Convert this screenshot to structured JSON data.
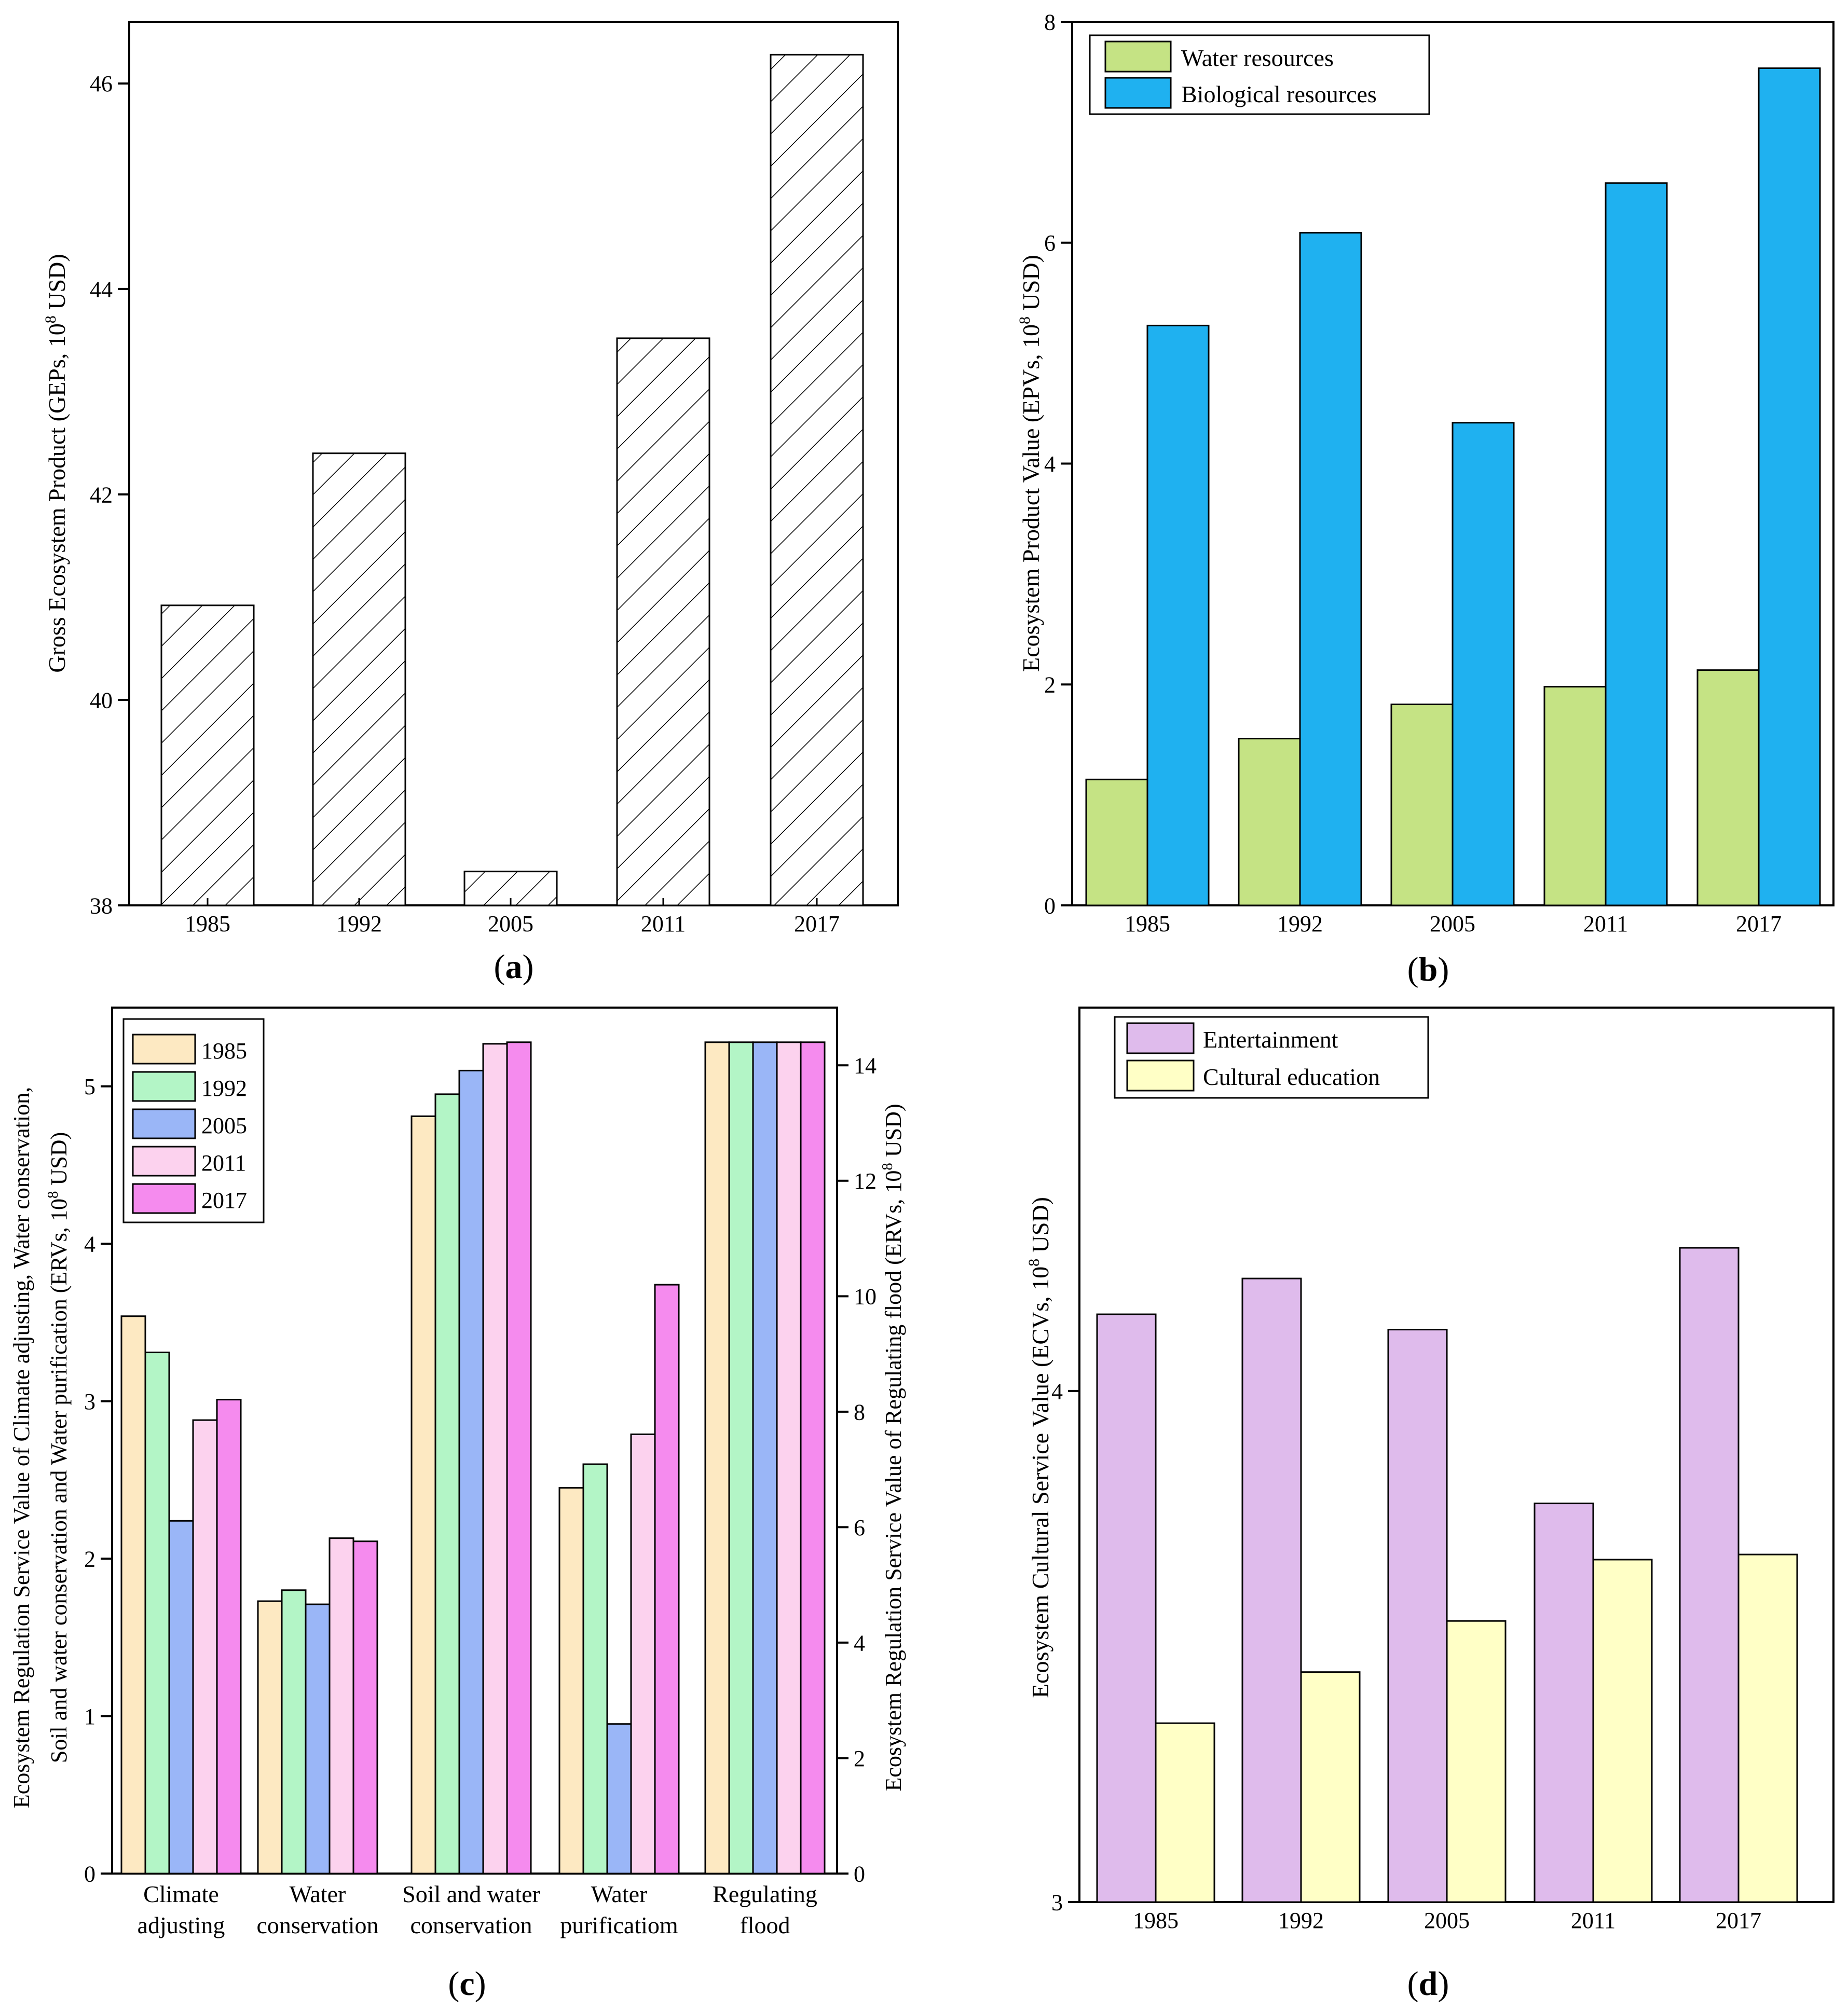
{
  "panels": {
    "a": {
      "caption_letter": "a"
    },
    "b": {
      "caption_letter": "b"
    },
    "c": {
      "caption_letter": "c"
    },
    "d": {
      "caption_letter": "d"
    }
  },
  "colors": {
    "water_resources": "#c5e384",
    "biological_resources": "#1fb1f0",
    "y1985": "#fde9c2",
    "y1992": "#b3f5c6",
    "y2005": "#9ab6f7",
    "y2011": "#fcd2ee",
    "y2017": "#f58bee",
    "entertainment": "#dfbbec",
    "cultural_education": "#ffffc6",
    "hatch": "#000000"
  },
  "chart_data": [
    {
      "id": "a",
      "type": "bar",
      "categories": [
        "1985",
        "1992",
        "2005",
        "2011",
        "2017"
      ],
      "values": [
        40.92,
        42.4,
        38.33,
        43.52,
        46.28
      ],
      "ylabel": "Gross Ecosystem Product (GEPs, 10",
      "ylabel_sup": "8",
      "ylabel_suffix": " USD)",
      "ylim": [
        38,
        46.6
      ],
      "yticks": [
        38,
        40,
        42,
        44,
        46
      ],
      "ytick_labels": [
        "38",
        "40",
        "42",
        "44",
        "46"
      ],
      "fill": "diagonal-hatch",
      "grid": false
    },
    {
      "id": "b",
      "type": "bar",
      "categories": [
        "1985",
        "1992",
        "2005",
        "2011",
        "2017"
      ],
      "series": [
        {
          "name": "Water resources",
          "values": [
            1.14,
            1.51,
            1.82,
            1.98,
            2.13
          ]
        },
        {
          "name": "Biological resources",
          "values": [
            5.25,
            6.09,
            4.37,
            6.54,
            7.58
          ]
        }
      ],
      "ylabel": "Ecosystem Product Value (EPVs, 10",
      "ylabel_sup": "8",
      "ylabel_suffix": " USD)",
      "ylim": [
        0,
        8
      ],
      "yticks": [
        0,
        2,
        4,
        6,
        8
      ],
      "ytick_labels": [
        "0",
        "2",
        "4",
        "6",
        "8"
      ],
      "legend": "top-left",
      "grid": false
    },
    {
      "id": "c",
      "type": "bar",
      "categories": [
        "Climate adjusting",
        "Water conservation",
        "Soil and water conservation",
        "Water purificatiom",
        "Regulating flood"
      ],
      "category_lines": [
        [
          "Climate",
          "adjusting"
        ],
        [
          "Water",
          "conservation"
        ],
        [
          "Soil and water",
          "conservation"
        ],
        [
          "Water",
          "purificatiom"
        ],
        [
          "Regulating",
          "flood"
        ]
      ],
      "series": [
        {
          "name": "1985",
          "values": [
            3.54,
            1.73,
            4.81,
            2.45,
            14.4
          ]
        },
        {
          "name": "1992",
          "values": [
            3.31,
            1.8,
            4.95,
            2.6,
            14.4
          ]
        },
        {
          "name": "2005",
          "values": [
            2.24,
            1.71,
            5.1,
            0.95,
            14.4
          ]
        },
        {
          "name": "2011",
          "values": [
            2.88,
            2.13,
            5.27,
            2.79,
            14.4
          ]
        },
        {
          "name": "2017",
          "values": [
            3.01,
            2.11,
            5.28,
            3.74,
            14.4
          ]
        }
      ],
      "left_axis_categories": [
        0,
        1,
        2,
        3
      ],
      "right_axis_categories": [
        4
      ],
      "ylabel_left_line1": "Ecosystem Regulation Service Value of Climate adjusting, Water conservation,",
      "ylabel_left_line2": "Soil and water conservation and Water purification (ERVs, 10",
      "ylabel_left_sup": "8",
      "ylabel_left_suffix": " USD)",
      "ylim_left": [
        0,
        5.5
      ],
      "yticks_left": [
        0,
        1,
        2,
        3,
        4,
        5
      ],
      "ytick_labels_left": [
        "0",
        "1",
        "2",
        "3",
        "4",
        "5"
      ],
      "ylabel_right": "Ecosystem Regulation Service Value of Regulating flood (ERVs, 10",
      "ylabel_right_sup": "8",
      "ylabel_right_suffix": " USD)",
      "ylim_right": [
        0,
        15
      ],
      "yticks_right": [
        0,
        2,
        4,
        6,
        8,
        10,
        12,
        14
      ],
      "ytick_labels_right": [
        "0",
        "2",
        "4",
        "6",
        "8",
        "10",
        "12",
        "14"
      ],
      "legend": "top-left",
      "grid": false
    },
    {
      "id": "d",
      "type": "bar",
      "categories": [
        "1985",
        "1992",
        "2005",
        "2011",
        "2017"
      ],
      "series": [
        {
          "name": "Entertainment",
          "values": [
            4.15,
            4.22,
            4.12,
            3.78,
            4.28
          ]
        },
        {
          "name": "Cultural education",
          "values": [
            3.35,
            3.45,
            3.55,
            3.67,
            3.68
          ]
        }
      ],
      "ylabel": "Ecosystem Cultural Service Value (ECVs, 10",
      "ylabel_sup": "8",
      "ylabel_suffix": " USD)",
      "ylim": [
        3,
        4.75
      ],
      "yticks": [
        3,
        4
      ],
      "ytick_labels": [
        "3",
        "4"
      ],
      "legend": "top-left",
      "grid": false
    }
  ]
}
